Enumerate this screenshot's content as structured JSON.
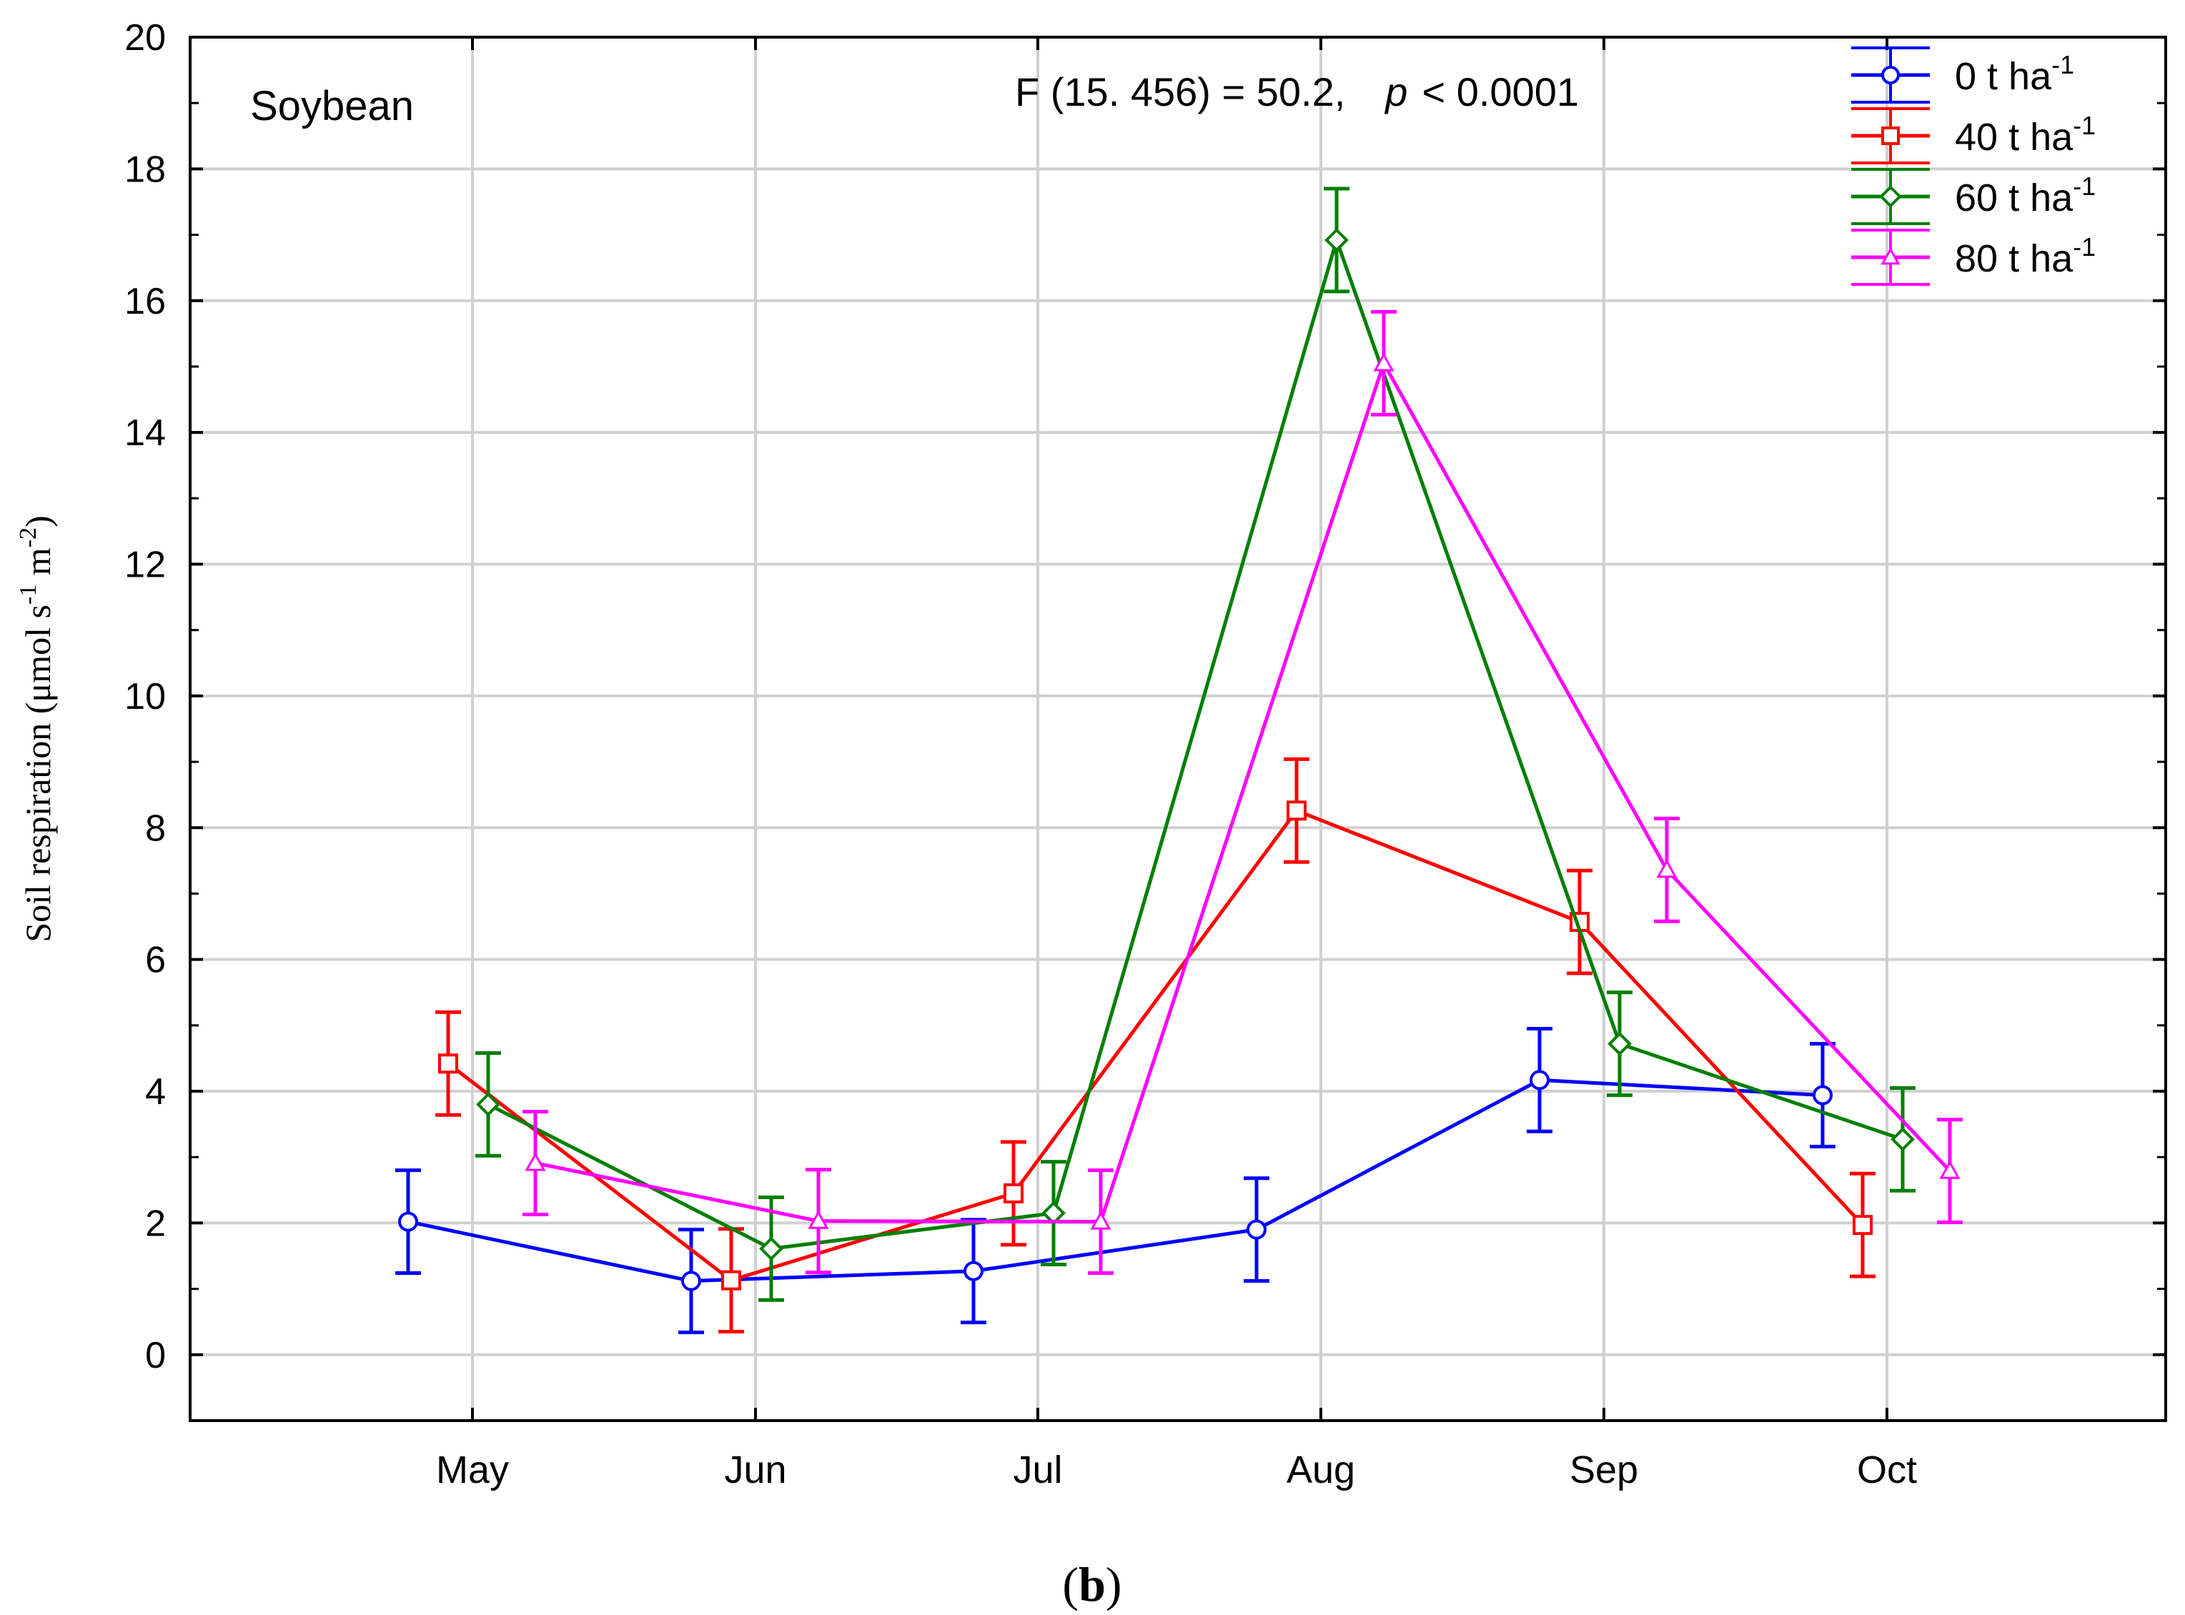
{
  "chart_data": {
    "type": "line",
    "panel_label": "Soybean",
    "stat_text_prefix": "F (15. 456) = 50.2,",
    "stat_p_symbol": "p",
    "stat_p_value": "< 0.0001",
    "ylabel_main": "Soil respiration (μmol s",
    "ylabel_exp1": "-1",
    "ylabel_mid": " m",
    "ylabel_exp2": "-2",
    "ylabel_end": ")",
    "xlabel": "",
    "ylim": [
      -1,
      20
    ],
    "yticks": [
      "0",
      "2",
      "4",
      "6",
      "8",
      "10",
      "12",
      "14",
      "16",
      "18",
      "20"
    ],
    "categories": [
      "May",
      "Jun",
      "Jul",
      "Aug",
      "Sep",
      "Oct"
    ],
    "caption_open": "(",
    "caption_letter": "b",
    "caption_close": ")",
    "series": [
      {
        "name": "0 t ha",
        "sup": "-1",
        "color": "#0000ff",
        "marker": "circle",
        "values": [
          2.02,
          1.12,
          1.27,
          1.9,
          4.17,
          3.94
        ],
        "errors": [
          0.78,
          0.78,
          0.78,
          0.78,
          0.78,
          0.78
        ]
      },
      {
        "name": "40 t ha",
        "sup": "-1",
        "color": "#ff0000",
        "marker": "square",
        "values": [
          4.42,
          1.13,
          2.45,
          8.26,
          6.57,
          1.97
        ],
        "errors": [
          0.78,
          0.78,
          0.78,
          0.78,
          0.78,
          0.78
        ]
      },
      {
        "name": "60 t ha",
        "sup": "-1",
        "color": "#007f00",
        "marker": "diamond",
        "values": [
          3.8,
          1.61,
          2.15,
          16.92,
          4.72,
          3.27
        ],
        "errors": [
          0.78,
          0.78,
          0.78,
          0.78,
          0.78,
          0.78
        ]
      },
      {
        "name": "80 t ha",
        "sup": "-1",
        "color": "#ff00ff",
        "marker": "triangle",
        "values": [
          2.91,
          2.03,
          2.02,
          15.05,
          7.36,
          2.79
        ],
        "errors": [
          0.78,
          0.78,
          0.78,
          0.78,
          0.78,
          0.78
        ]
      }
    ]
  }
}
